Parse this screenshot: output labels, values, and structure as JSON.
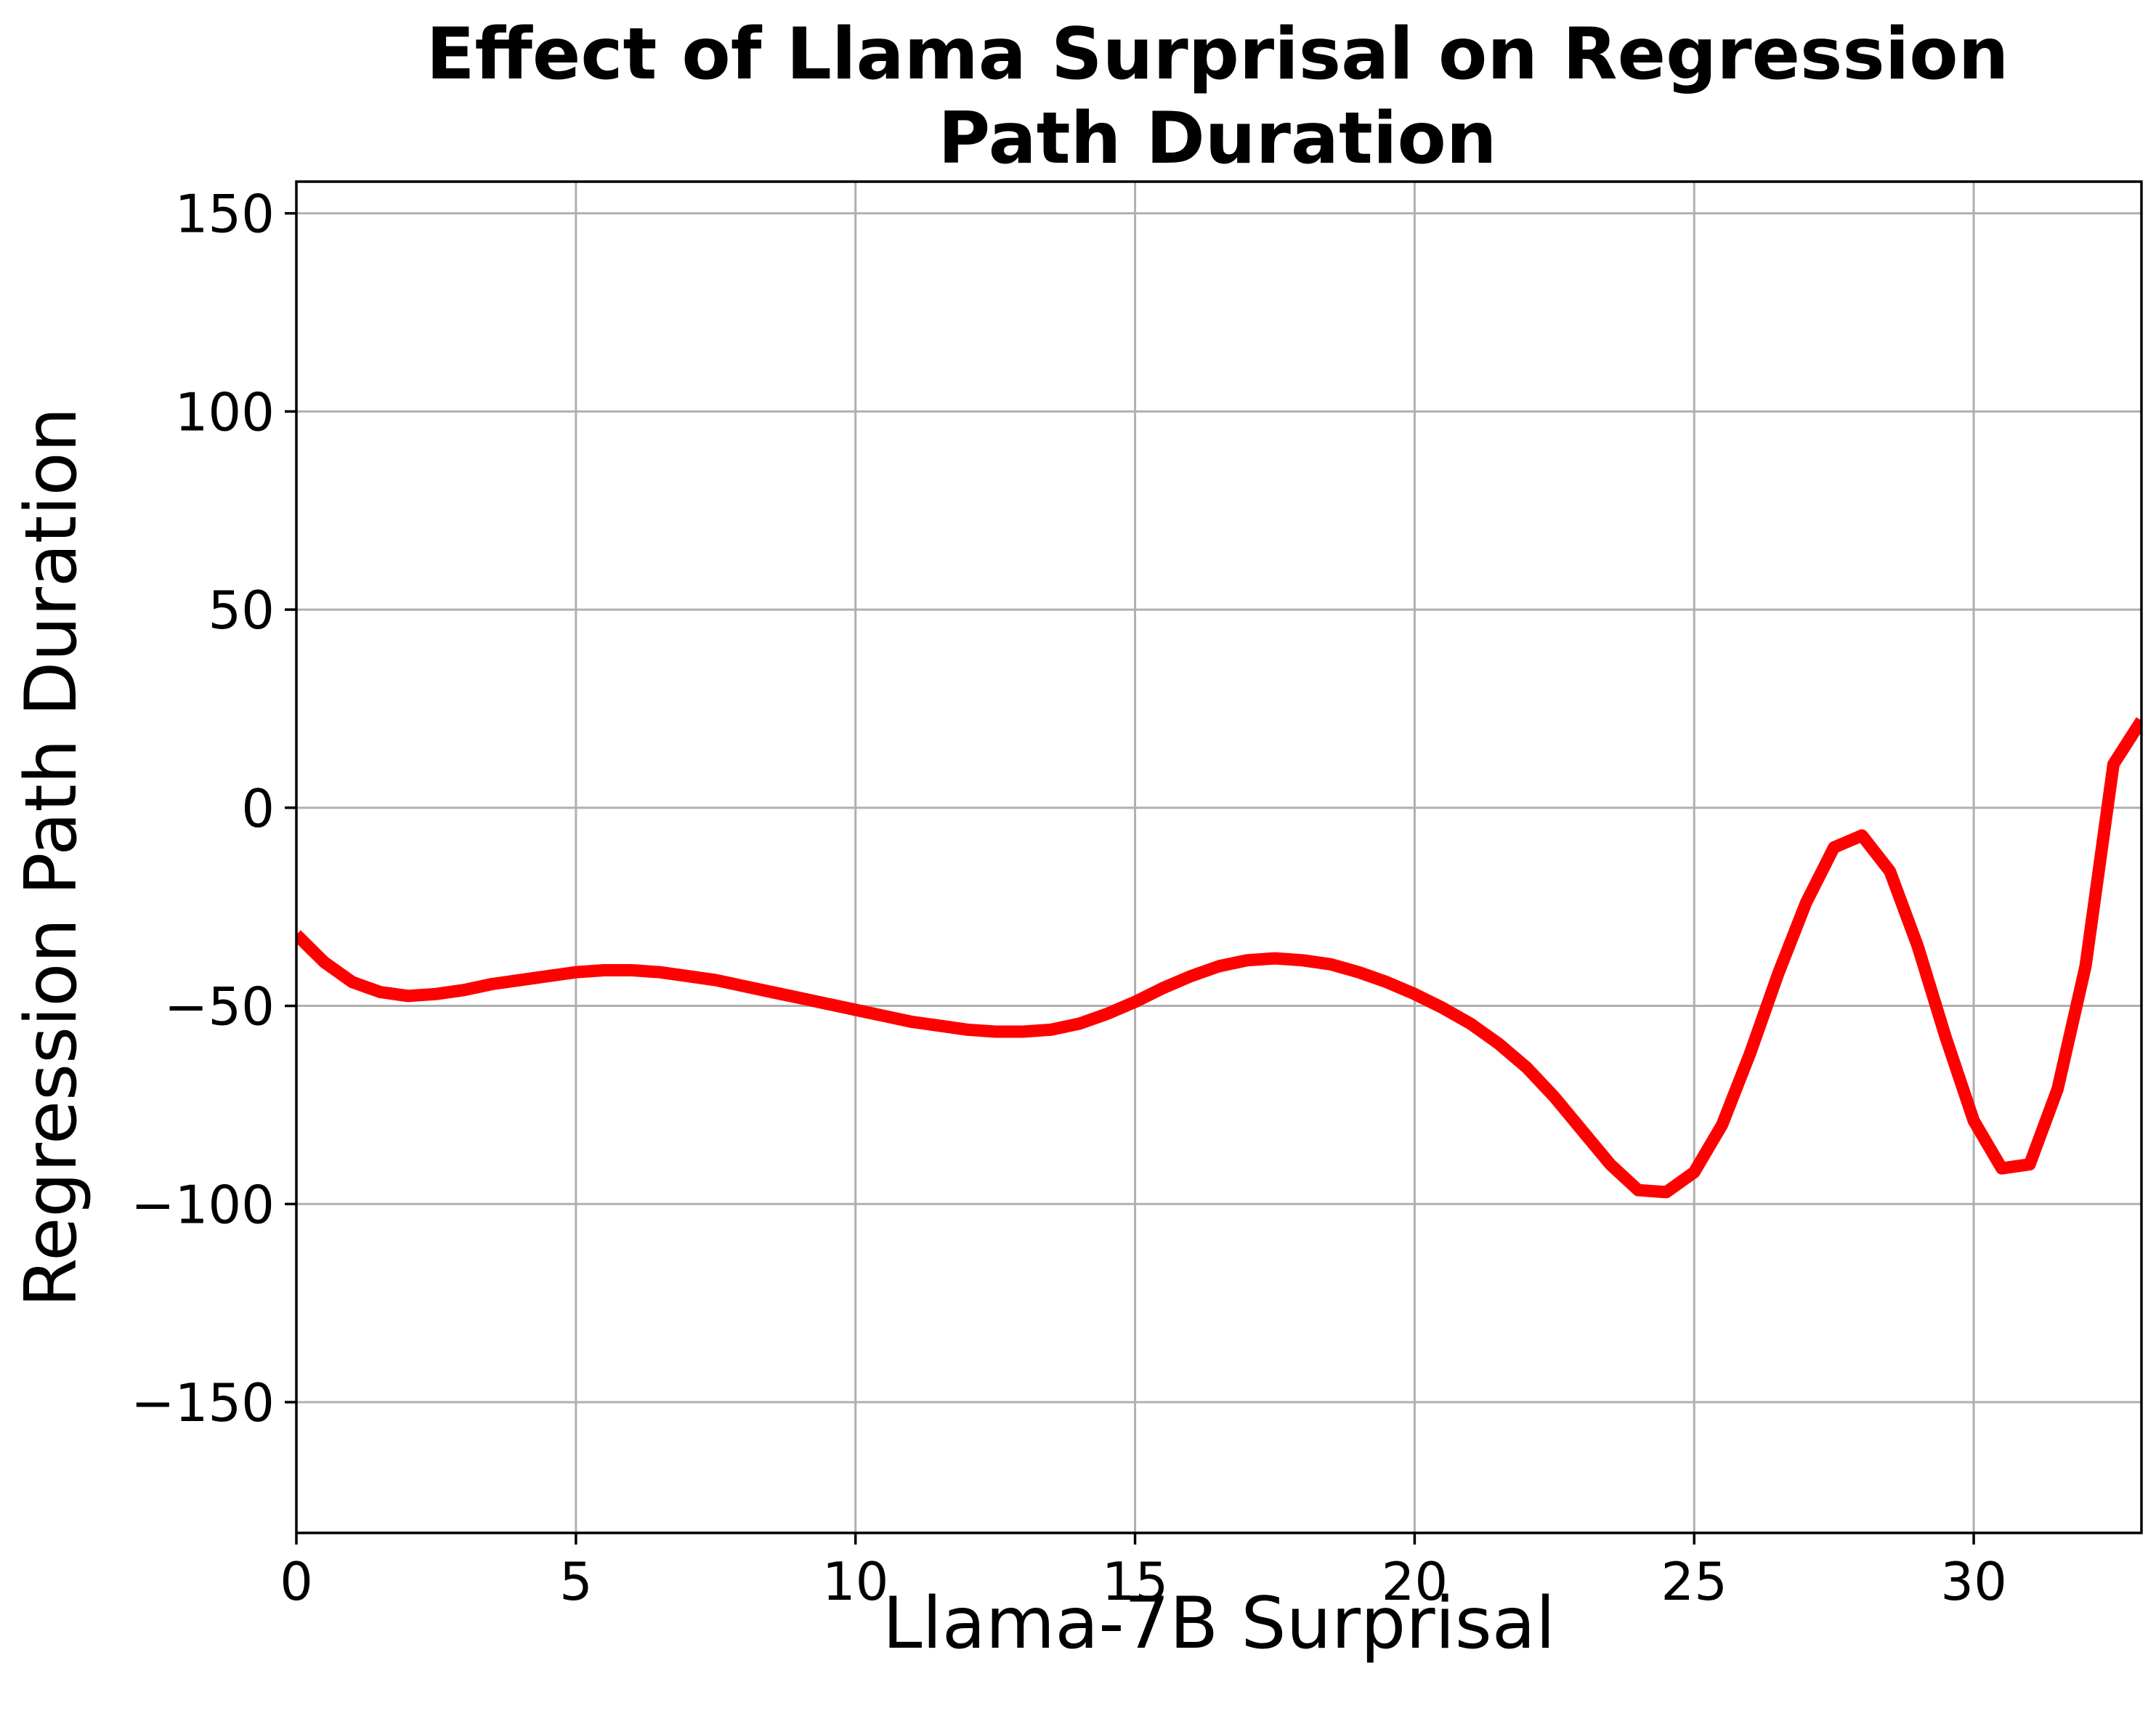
{
  "chart_data": {
    "type": "line",
    "title": "Effect of Llama Surprisal on Regression Path Duration",
    "title_lines": [
      "Effect of Llama Surprisal on Regression",
      "Path Duration"
    ],
    "xlabel": "Llama-7B Surprisal",
    "ylabel": "Regression Path Duration",
    "xlim": [
      0,
      33
    ],
    "ylim": [
      -183,
      158
    ],
    "xticks": [
      0,
      5,
      10,
      15,
      20,
      25,
      30
    ],
    "yticks": [
      -150,
      -100,
      -50,
      0,
      50,
      100,
      150
    ],
    "xtick_labels": [
      "0",
      "5",
      "10",
      "15",
      "20",
      "25",
      "30"
    ],
    "ytick_labels": [
      "−150",
      "−100",
      "−50",
      "0",
      "50",
      "100",
      "150"
    ],
    "grid": true,
    "series": [
      {
        "color": "#ff0000",
        "x": [
          0,
          0.5,
          1,
          1.5,
          2,
          2.5,
          3,
          3.5,
          4,
          4.5,
          5,
          5.5,
          6,
          6.5,
          7,
          7.5,
          8,
          8.5,
          9,
          9.5,
          10,
          10.5,
          11,
          11.5,
          12,
          12.5,
          13,
          13.5,
          14,
          14.5,
          15,
          15.5,
          16,
          16.5,
          17,
          17.5,
          18,
          18.5,
          19,
          19.5,
          20,
          20.5,
          21,
          21.5,
          22,
          22.5,
          23,
          23.5,
          24,
          24.5,
          25,
          25.5,
          26,
          26.5,
          27,
          27.5,
          28,
          28.5,
          29,
          29.5,
          30,
          30.5,
          31,
          31.5,
          32,
          32.5,
          33
        ],
        "y": [
          -32,
          -39,
          -44,
          -46.5,
          -47.5,
          -47,
          -46,
          -44.5,
          -43.5,
          -42.5,
          -41.5,
          -41,
          -41,
          -41.5,
          -42.5,
          -43.5,
          -45,
          -46.5,
          -48,
          -49.5,
          -51,
          -52.5,
          -54,
          -55,
          -56,
          -56.5,
          -56.5,
          -56,
          -54.5,
          -52,
          -49,
          -45.5,
          -42.5,
          -40,
          -38.5,
          -38,
          -38.5,
          -39.5,
          -41.5,
          -44,
          -47,
          -50.5,
          -54.5,
          -59.5,
          -65.5,
          -73,
          -81.5,
          -90,
          -96.5,
          -97,
          -92,
          -80,
          -62,
          -42,
          -24,
          -10,
          -7,
          -16,
          -35,
          -58,
          -79,
          -91,
          -90,
          -71,
          -40,
          11,
          22
        ]
      }
    ]
  }
}
